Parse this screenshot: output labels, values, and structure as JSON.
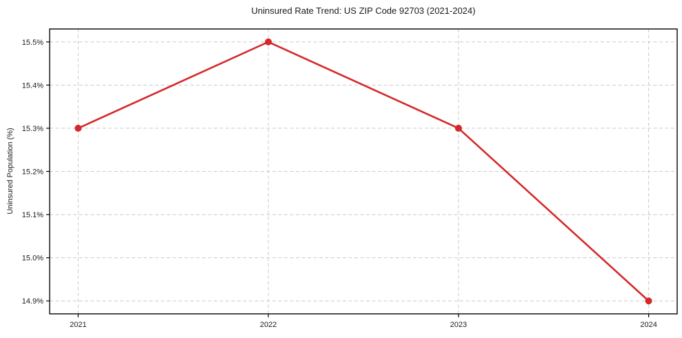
{
  "chart_data": {
    "type": "line",
    "title": "Uninsured Rate Trend: US ZIP Code 92703 (2021-2024)",
    "xlabel": "",
    "ylabel": "Uninsured Population (%)",
    "x": [
      2021,
      2022,
      2023,
      2024
    ],
    "series": [
      {
        "name": "Uninsured Rate",
        "values": [
          15.3,
          15.5,
          15.3,
          14.9
        ]
      }
    ],
    "x_tick_labels": [
      "2021",
      "2022",
      "2023",
      "2024"
    ],
    "y_tick_labels": [
      "14.9%",
      "15.0%",
      "15.1%",
      "15.2%",
      "15.3%",
      "15.4%",
      "15.5%"
    ],
    "y_tick_values": [
      14.9,
      15.0,
      15.1,
      15.2,
      15.3,
      15.4,
      15.5
    ],
    "xlim": [
      2020.85,
      2024.15
    ],
    "ylim": [
      14.87,
      15.53
    ],
    "grid": true,
    "legend": "none",
    "colors": {
      "line": "#d62728",
      "marker": "#d62728",
      "grid": "#c9c9c9",
      "spine": "#000000",
      "background": "#ffffff",
      "text": "#1a1a1a"
    }
  }
}
